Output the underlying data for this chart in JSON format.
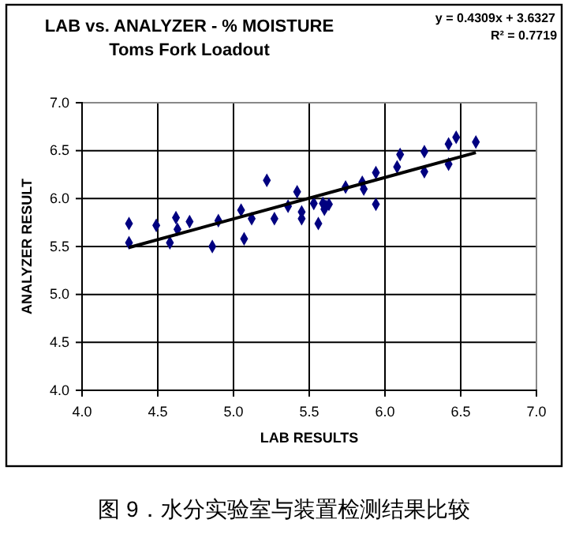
{
  "chart_data": {
    "type": "scatter",
    "title": "LAB vs. ANALYZER - % MOISTURE",
    "subtitle": "Toms Fork Loadout",
    "xlabel": "LAB RESULTS",
    "ylabel": "ANALYZER RESULT",
    "xlim": [
      4,
      7
    ],
    "xticks": [
      {
        "value": 4,
        "label": "4.0"
      },
      {
        "value": 4.5,
        "label": "4.5"
      },
      {
        "value": 5,
        "label": "5.0"
      },
      {
        "value": 5.5,
        "label": "5.5"
      },
      {
        "value": 6,
        "label": "6.0"
      },
      {
        "value": 6.5,
        "label": "6.5"
      },
      {
        "value": 7,
        "label": "7.0"
      }
    ],
    "ylim": [
      4,
      7
    ],
    "yticks": [
      {
        "value": 4,
        "label": "4.0"
      },
      {
        "value": 4.5,
        "label": "4.5"
      },
      {
        "value": 5,
        "label": "5.0"
      },
      {
        "value": 5.5,
        "label": "5.5"
      },
      {
        "value": 6,
        "label": "6.0"
      },
      {
        "value": 6.5,
        "label": "6.5"
      },
      {
        "value": 7,
        "label": "7.0"
      }
    ],
    "grid": true,
    "marker": "diamond",
    "annotations": [
      "y = 0.4309x + 3.6327",
      "R² = 0.7719",
      "图 9．水分实验室与装置检测结果比较"
    ],
    "series": [
      {
        "color": "#000080",
        "x": [
          4.31,
          4.31,
          4.49,
          4.58,
          4.62,
          4.63,
          4.71,
          4.86,
          4.9,
          5.05,
          5.07,
          5.12,
          5.22,
          5.27,
          5.36,
          5.42,
          5.45,
          5.45,
          5.53,
          5.56,
          5.59,
          5.6,
          5.61,
          5.63,
          5.74,
          5.85,
          5.86,
          5.94,
          5.94,
          6.08,
          6.1,
          6.26,
          6.26,
          6.42,
          6.42,
          6.47,
          6.6
        ],
        "values": [
          5.74,
          5.54,
          5.72,
          5.54,
          5.8,
          5.68,
          5.76,
          5.5,
          5.77,
          5.88,
          5.58,
          5.79,
          6.19,
          5.79,
          5.92,
          6.07,
          5.79,
          5.86,
          5.95,
          5.74,
          5.95,
          5.89,
          5.92,
          5.94,
          6.12,
          6.17,
          6.1,
          6.27,
          5.94,
          6.33,
          6.46,
          6.49,
          6.28,
          6.57,
          6.36,
          6.64,
          6.59
        ]
      },
      {
        "type": "line",
        "color": "#000000",
        "marker": "none",
        "x": [
          4.31,
          6.6
        ],
        "values": [
          5.49,
          6.48
        ]
      }
    ]
  }
}
